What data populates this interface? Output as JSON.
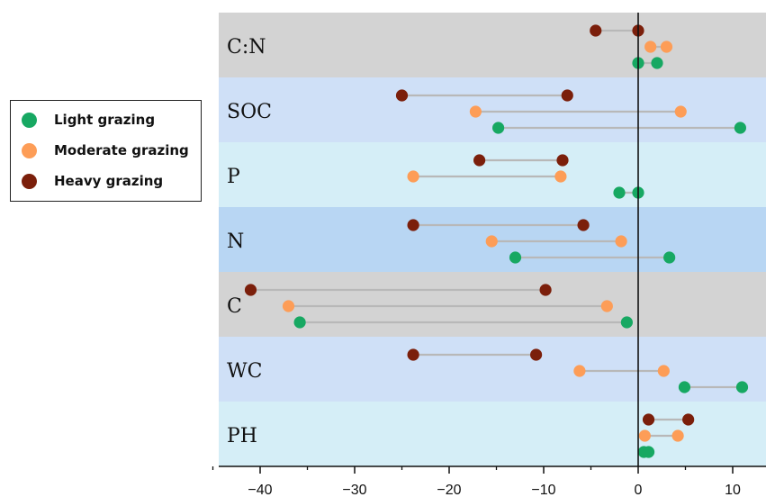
{
  "chart_data": {
    "type": "dumbbell",
    "categories": [
      "C:N",
      "SOC",
      "P",
      "N",
      "C",
      "WC",
      "PH"
    ],
    "band_colors": [
      "#d3d3d3",
      "#cfe0f7",
      "#d5eef7",
      "#b8d6f3",
      "#d3d3d3",
      "#cfe0f7",
      "#d5eef7"
    ],
    "series": [
      {
        "name": "Heavy grazing",
        "color": "#7b1f0b",
        "ranges": [
          [
            -4.5,
            0
          ],
          [
            -25,
            -7.5
          ],
          [
            -16.8,
            -8
          ],
          [
            -23.8,
            -5.8
          ],
          [
            -41,
            -9.8
          ],
          [
            -23.8,
            -10.8
          ],
          [
            1.1,
            5.3
          ]
        ]
      },
      {
        "name": "Moderate grazing",
        "color": "#fd9d57",
        "ranges": [
          [
            1.3,
            3.0
          ],
          [
            -17.2,
            4.5
          ],
          [
            -23.8,
            -8.2
          ],
          [
            -15.5,
            -1.8
          ],
          [
            -37,
            -3.3
          ],
          [
            -6.2,
            2.7
          ],
          [
            0.7,
            4.2
          ]
        ]
      },
      {
        "name": "Light grazing",
        "color": "#17a862",
        "ranges": [
          [
            0,
            2.0
          ],
          [
            -14.8,
            10.8
          ],
          [
            -2.0,
            0
          ],
          [
            -13,
            3.3
          ],
          [
            -35.8,
            -1.2
          ],
          [
            4.9,
            11.0
          ],
          [
            0.6,
            1.1
          ]
        ]
      }
    ],
    "xlim": [
      -45,
      13
    ],
    "xticks": [
      -40,
      -30,
      -20,
      -10,
      0,
      10
    ],
    "legend_position": "left"
  },
  "legend": {
    "items": [
      {
        "label": "Light grazing",
        "color": "#17a862"
      },
      {
        "label": "Moderate grazing",
        "color": "#fd9d57"
      },
      {
        "label": "Heavy grazing",
        "color": "#7b1f0b"
      }
    ]
  }
}
